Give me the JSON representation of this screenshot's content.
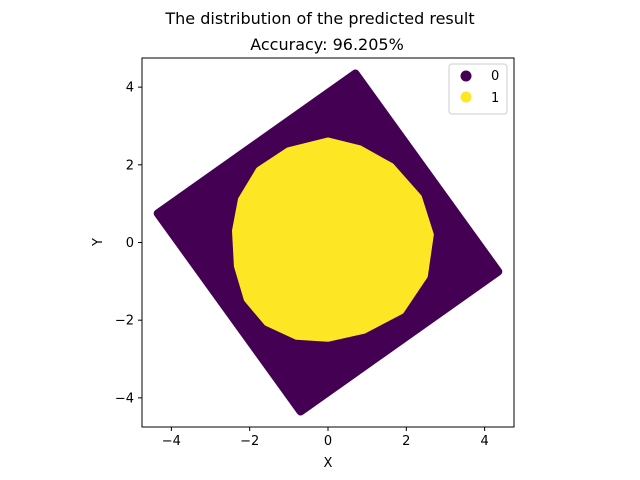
{
  "figure": {
    "suptitle": "The distribution of the predicted result"
  },
  "chart_data": {
    "type": "scatter",
    "title": "Accuracy: 96.205%",
    "xlabel": "X",
    "ylabel": "Y",
    "xlim": [
      -4.75,
      4.75
    ],
    "ylim": [
      -4.75,
      4.75
    ],
    "xticks": [
      -4,
      -2,
      0,
      2,
      4
    ],
    "yticks": [
      -4,
      -2,
      0,
      2,
      4
    ],
    "grid": false,
    "legend_position": "top-right",
    "series": [
      {
        "name": "0",
        "color": "#440154",
        "shape": "rotated-square",
        "vertices": [
          [
            0.7,
            4.35
          ],
          [
            4.35,
            -0.75
          ],
          [
            -0.7,
            -4.35
          ],
          [
            -4.35,
            0.75
          ]
        ]
      },
      {
        "name": "1",
        "color": "#fde725",
        "shape": "blob",
        "outline": [
          [
            0.0,
            2.6
          ],
          [
            0.8,
            2.4
          ],
          [
            1.6,
            1.95
          ],
          [
            2.3,
            1.15
          ],
          [
            2.6,
            0.2
          ],
          [
            2.45,
            -0.85
          ],
          [
            1.85,
            -1.75
          ],
          [
            0.9,
            -2.25
          ],
          [
            0.0,
            -2.45
          ],
          [
            -0.8,
            -2.4
          ],
          [
            -1.55,
            -2.05
          ],
          [
            -2.05,
            -1.45
          ],
          [
            -2.3,
            -0.6
          ],
          [
            -2.35,
            0.3
          ],
          [
            -2.2,
            1.1
          ],
          [
            -1.75,
            1.85
          ],
          [
            -1.0,
            2.35
          ]
        ]
      }
    ]
  }
}
